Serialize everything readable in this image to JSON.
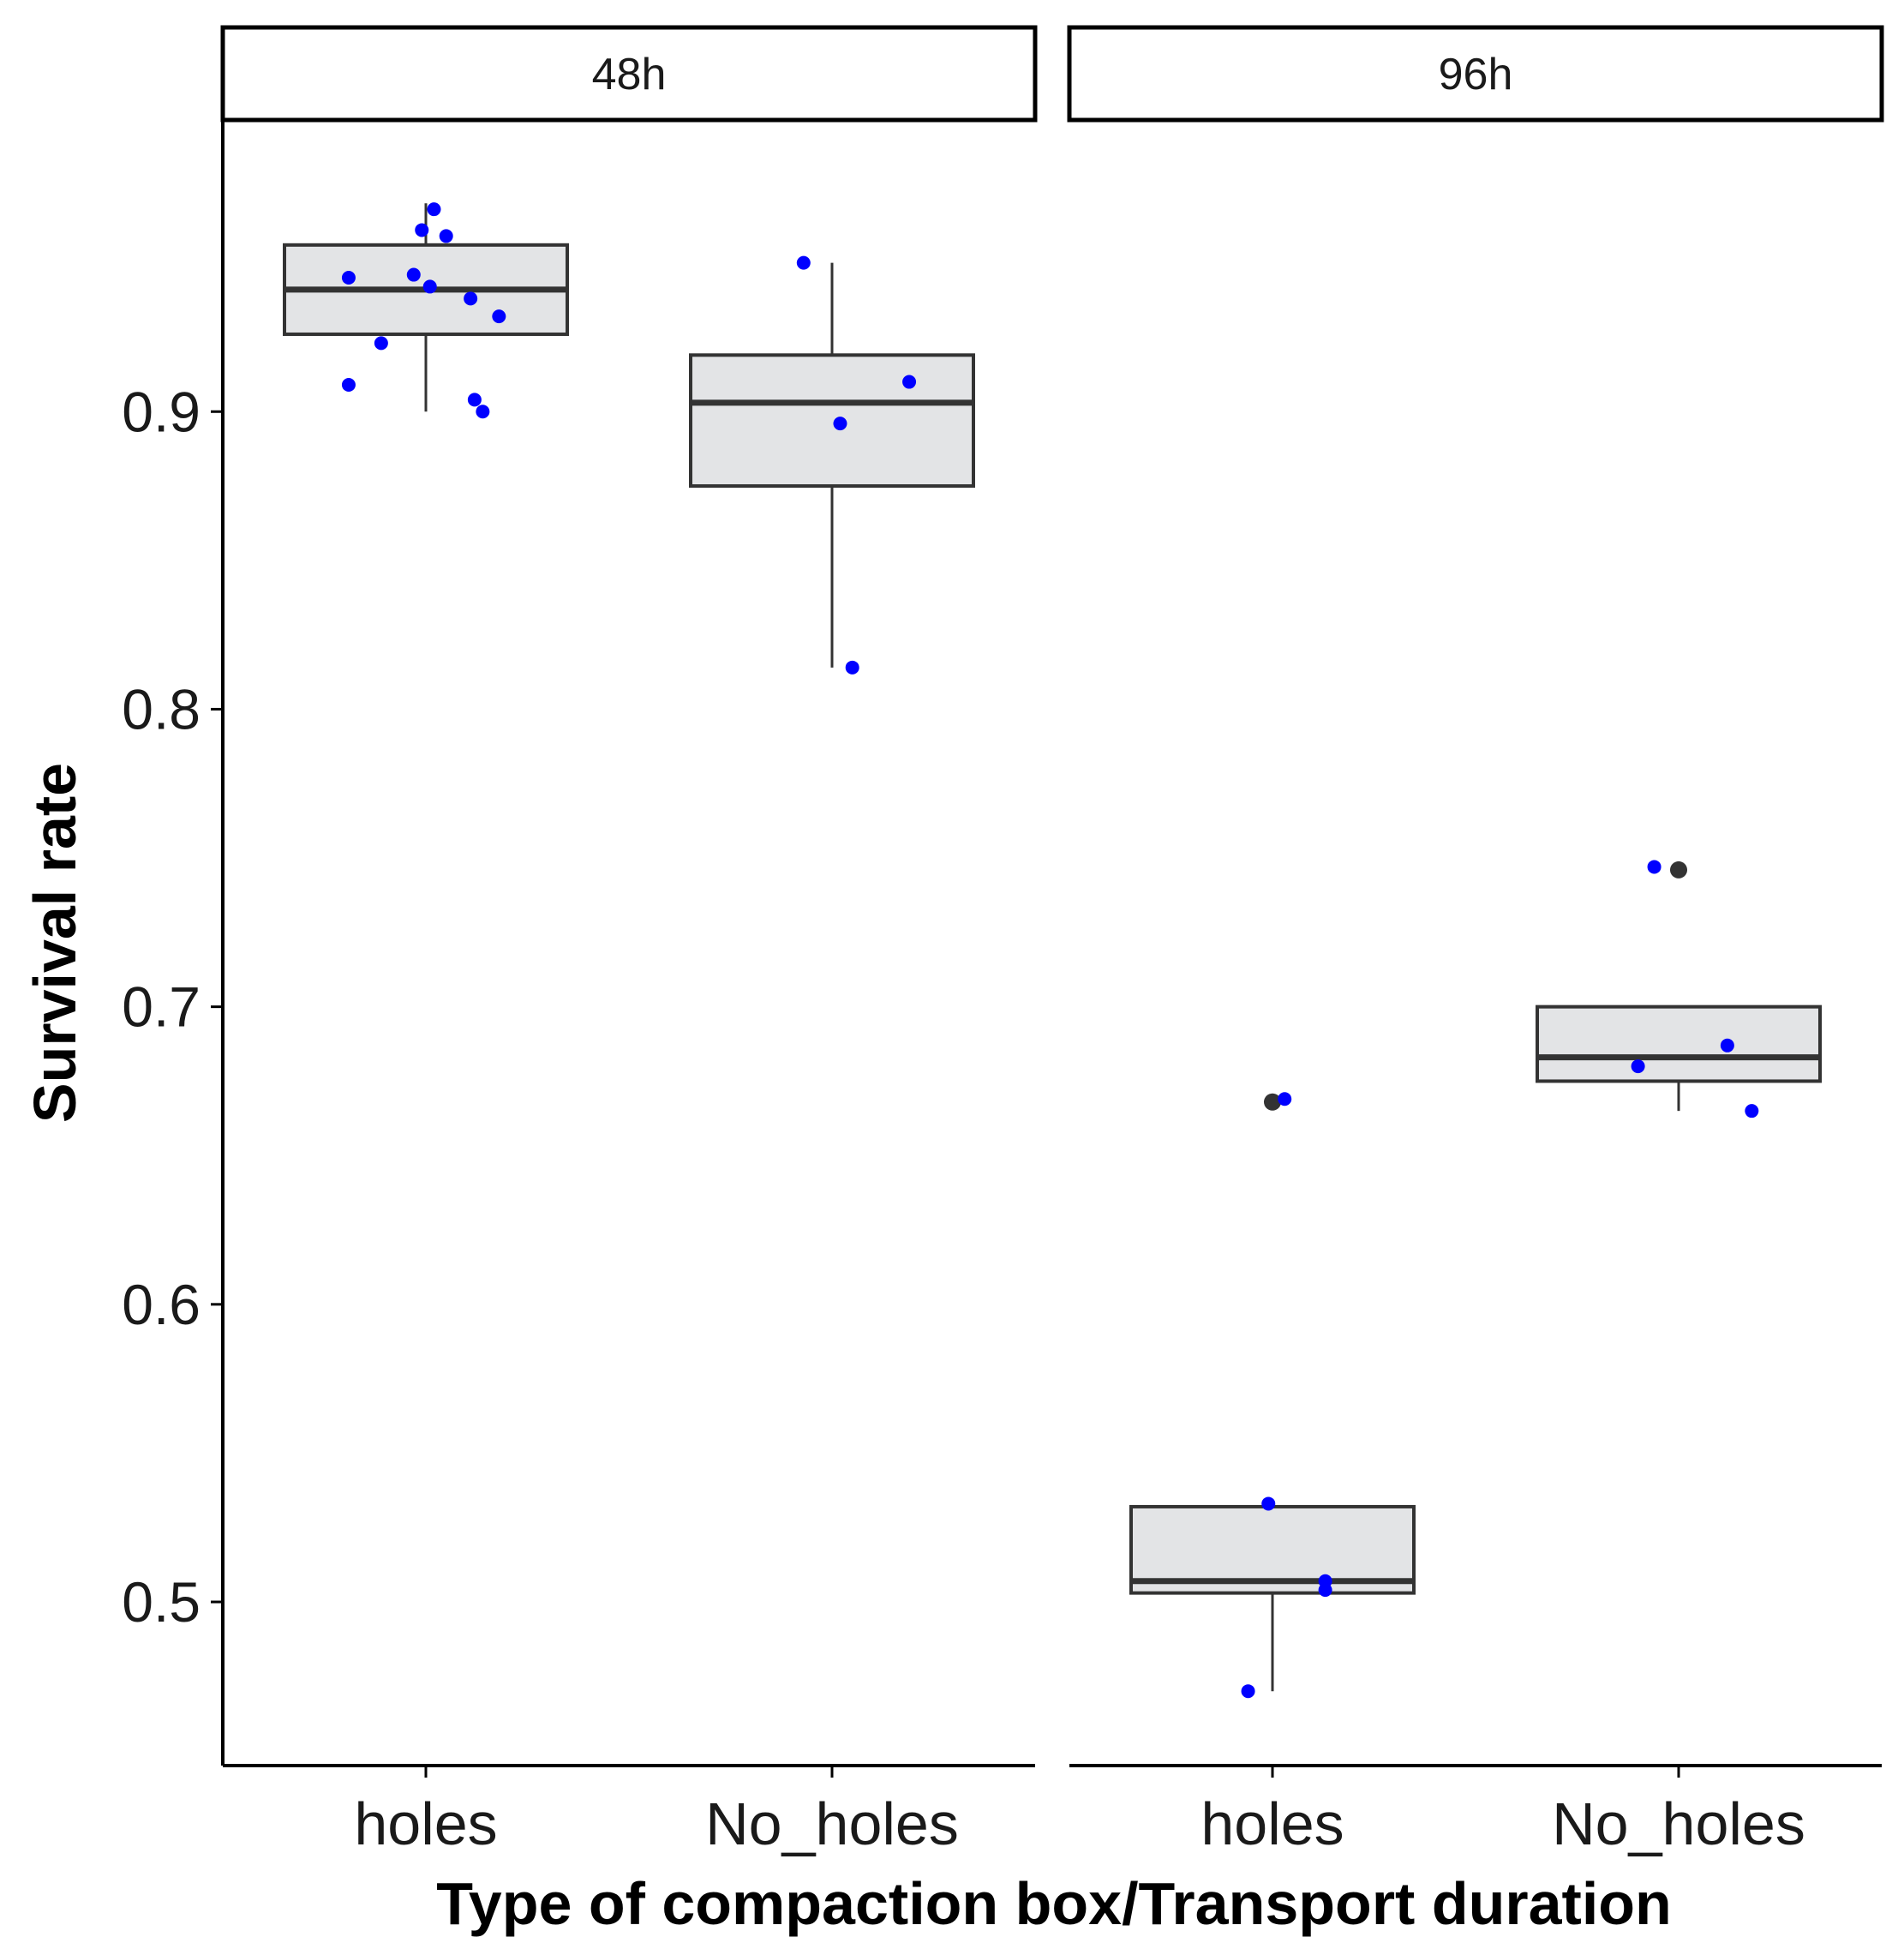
{
  "chart_data": {
    "type": "box",
    "xlabel": "Type of compaction box/Transport duration",
    "ylabel": "Survival rate",
    "ylim": [
      0.445,
      0.998
    ],
    "yticks": [
      0.5,
      0.6,
      0.7,
      0.8,
      0.9
    ],
    "ytick_labels": [
      "0.5",
      "0.6",
      "0.7",
      "0.8",
      "0.9"
    ],
    "categories": [
      "holes",
      "No_holes"
    ],
    "colors": {
      "box_fill": "#e3e4e6",
      "box_stroke": "#333333",
      "point": "#0000ff",
      "outlier": "#333333",
      "axis": "#000000"
    },
    "panels": [
      {
        "label": "48h",
        "groups": [
          {
            "category": "holes",
            "lower_whisker": 0.9,
            "q1": 0.926,
            "median": 0.941,
            "q3": 0.956,
            "upper_whisker": 0.97,
            "outliers": [],
            "points": [
              {
                "jitter": -0.19,
                "y": 0.945
              },
              {
                "jitter": -0.11,
                "y": 0.923
              },
              {
                "jitter": -0.19,
                "y": 0.909
              },
              {
                "jitter": -0.03,
                "y": 0.946
              },
              {
                "jitter": -0.01,
                "y": 0.961
              },
              {
                "jitter": 0.02,
                "y": 0.968
              },
              {
                "jitter": 0.05,
                "y": 0.959
              },
              {
                "jitter": 0.01,
                "y": 0.942
              },
              {
                "jitter": 0.11,
                "y": 0.938
              },
              {
                "jitter": 0.18,
                "y": 0.932
              },
              {
                "jitter": 0.12,
                "y": 0.904
              },
              {
                "jitter": 0.14,
                "y": 0.9
              }
            ]
          },
          {
            "category": "No_holes",
            "lower_whisker": 0.814,
            "q1": 0.875,
            "median": 0.903,
            "q3": 0.919,
            "upper_whisker": 0.95,
            "outliers": [],
            "points": [
              {
                "jitter": -0.07,
                "y": 0.95
              },
              {
                "jitter": 0.19,
                "y": 0.91
              },
              {
                "jitter": 0.02,
                "y": 0.896
              },
              {
                "jitter": 0.05,
                "y": 0.814
              }
            ]
          }
        ]
      },
      {
        "label": "96h",
        "groups": [
          {
            "category": "holes",
            "lower_whisker": 0.47,
            "q1": 0.503,
            "median": 0.507,
            "q3": 0.532,
            "upper_whisker": 0.532,
            "outliers": [
              0.668
            ],
            "points": [
              {
                "jitter": 0.03,
                "y": 0.669
              },
              {
                "jitter": -0.01,
                "y": 0.533
              },
              {
                "jitter": 0.13,
                "y": 0.507
              },
              {
                "jitter": 0.13,
                "y": 0.504
              },
              {
                "jitter": -0.06,
                "y": 0.47
              }
            ]
          },
          {
            "category": "No_holes",
            "lower_whisker": 0.665,
            "q1": 0.675,
            "median": 0.683,
            "q3": 0.7,
            "upper_whisker": 0.7,
            "outliers": [
              0.746
            ],
            "points": [
              {
                "jitter": -0.06,
                "y": 0.747
              },
              {
                "jitter": 0.12,
                "y": 0.687
              },
              {
                "jitter": -0.1,
                "y": 0.68
              },
              {
                "jitter": 0.18,
                "y": 0.665
              }
            ]
          }
        ]
      }
    ]
  }
}
